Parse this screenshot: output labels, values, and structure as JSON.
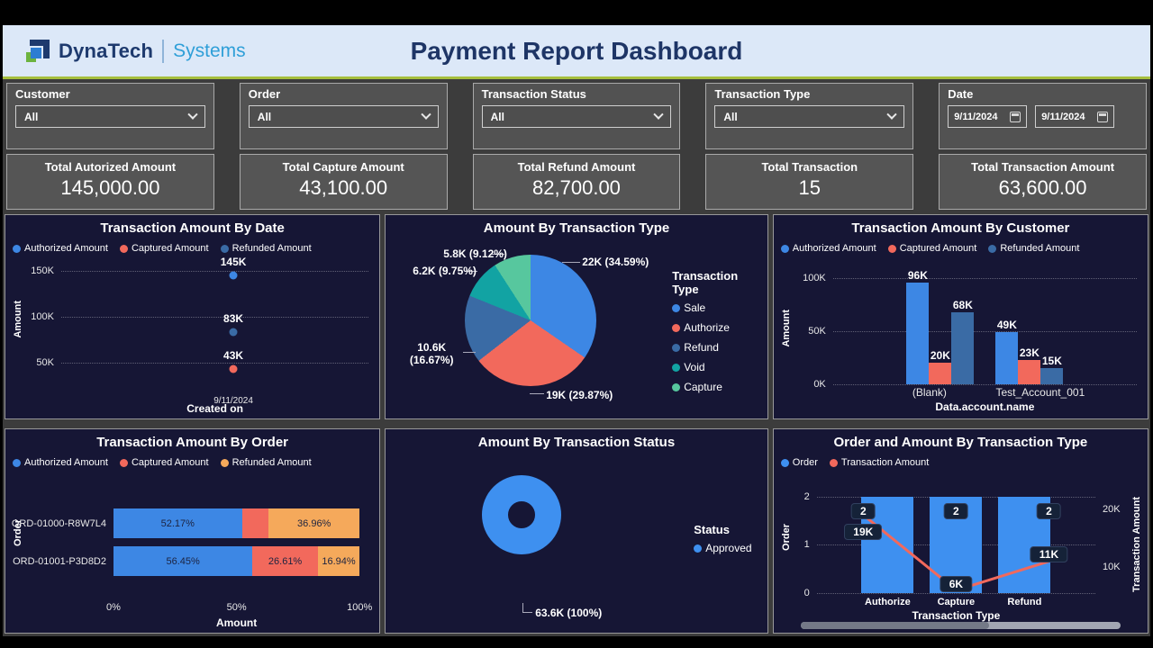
{
  "header": {
    "brand": "DynaTech",
    "brand_sub": "Systems",
    "title": "Payment Report Dashboard"
  },
  "filters": [
    {
      "label": "Customer",
      "value": "All"
    },
    {
      "label": "Order",
      "value": "All"
    },
    {
      "label": "Transaction Status",
      "value": "All"
    },
    {
      "label": "Transaction Type",
      "value": "All"
    },
    {
      "label": "Date",
      "from": "9/11/2024",
      "to": "9/11/2024"
    }
  ],
  "kpis": [
    {
      "label": "Total Autorized Amount",
      "value": "145,000.00"
    },
    {
      "label": "Total Capture Amount",
      "value": "43,100.00"
    },
    {
      "label": "Total Refund Amount",
      "value": "82,700.00"
    },
    {
      "label": "Total Transaction",
      "value": "15"
    },
    {
      "label": "Total Transaction Amount",
      "value": "63,600.00"
    }
  ],
  "colors": {
    "blue": "#3d87e4",
    "bright_blue": "#3e90f0",
    "salmon": "#f2695c",
    "steel_blue": "#3a6ba5",
    "teal": "#12a3a3",
    "mint": "#57c79e",
    "orange": "#f5a95b",
    "panel_bg": "#161635",
    "accent_line": "#a6bf3d"
  },
  "chart_data": [
    {
      "type": "scatter",
      "title": "Transaction Amount By Date",
      "legend": [
        {
          "label": "Authorized Amount",
          "color": "#3d87e4"
        },
        {
          "label": "Captured Amount",
          "color": "#f2695c"
        },
        {
          "label": "Refunded Amount",
          "color": "#3a6ba5"
        }
      ],
      "xlabel": "Created on",
      "ylabel": "Amount",
      "x": [
        "9/11/2024"
      ],
      "yticks": [
        {
          "label": "150K",
          "value": 150000
        },
        {
          "label": "100K",
          "value": 100000
        },
        {
          "label": "50K",
          "value": 50000
        }
      ],
      "points": [
        {
          "series": "Authorized Amount",
          "x": "9/11/2024",
          "value": 145000,
          "label": "145K",
          "color": "#3d87e4"
        },
        {
          "series": "Refunded Amount",
          "x": "9/11/2024",
          "value": 83000,
          "label": "83K",
          "color": "#3a6ba5"
        },
        {
          "series": "Captured Amount",
          "x": "9/11/2024",
          "value": 43000,
          "label": "43K",
          "color": "#f2695c"
        }
      ]
    },
    {
      "type": "pie",
      "title": "Amount By Transaction Type",
      "legend_title": "Transaction Type",
      "slices": [
        {
          "label": "Sale",
          "value": 22000,
          "pct": 34.59,
          "display": "22K (34.59%)",
          "color": "#3d87e4"
        },
        {
          "label": "Authorize",
          "value": 19000,
          "pct": 29.87,
          "display": "19K (29.87%)",
          "color": "#f2695c"
        },
        {
          "label": "Refund",
          "value": 10600,
          "pct": 16.67,
          "display": "10.6K (16.67%)",
          "color": "#3a6ba5"
        },
        {
          "label": "Void",
          "value": 6200,
          "pct": 9.75,
          "display": "6.2K (9.75%)",
          "color": "#12a3a3"
        },
        {
          "label": "Capture",
          "value": 5800,
          "pct": 9.12,
          "display": "5.8K (9.12%)",
          "color": "#57c79e"
        }
      ]
    },
    {
      "type": "bar",
      "title": "Transaction Amount By Customer",
      "xlabel": "Data.account.name",
      "ylabel": "Amount",
      "categories": [
        "(Blank)",
        "Test_Account_001"
      ],
      "yticks": [
        {
          "label": "100K",
          "value": 100000
        },
        {
          "label": "50K",
          "value": 50000
        },
        {
          "label": "0K",
          "value": 0
        }
      ],
      "ymax": 100000,
      "series": [
        {
          "name": "Authorized Amount",
          "color": "#3d87e4",
          "values": [
            96000,
            49000
          ],
          "labels": [
            "96K",
            "49K"
          ]
        },
        {
          "name": "Captured Amount",
          "color": "#f2695c",
          "values": [
            20000,
            23000
          ],
          "labels": [
            "20K",
            "23K"
          ]
        },
        {
          "name": "Refunded Amount",
          "color": "#3a6ba5",
          "values": [
            68000,
            15000
          ],
          "labels": [
            "68K",
            "15K"
          ]
        }
      ]
    },
    {
      "type": "stacked_bar_h",
      "title": "Transaction Amount By Order",
      "xlabel": "Amount",
      "ylabel": "Order",
      "xticks": [
        "0%",
        "50%",
        "100%"
      ],
      "categories": [
        "ORD-01000-R8W7L4",
        "ORD-01001-P3D8D2"
      ],
      "series": [
        {
          "name": "Authorized Amount",
          "color": "#3d87e4",
          "values": [
            52.17,
            56.45
          ],
          "labels": [
            "52.17%",
            "56.45%"
          ]
        },
        {
          "name": "Captured Amount",
          "color": "#f2695c",
          "values": [
            10.87,
            26.61
          ],
          "labels": [
            "",
            "26.61%"
          ]
        },
        {
          "name": "Refunded Amount",
          "color": "#f5a95b",
          "values": [
            36.96,
            16.94
          ],
          "labels": [
            "36.96%",
            "16.94%"
          ]
        }
      ]
    },
    {
      "type": "donut",
      "title": "Amount By Transaction Status",
      "legend_title": "Status",
      "slices": [
        {
          "label": "Approved",
          "value": 63600,
          "pct": 100,
          "display": "63.6K (100%)",
          "color": "#3e90f0"
        }
      ]
    },
    {
      "type": "combo",
      "title": "Order and Amount By Transaction Type",
      "xlabel": "Transaction Type",
      "ylabel_left": "Order",
      "ylabel_right": "Transaction Amount",
      "categories": [
        "Authorize",
        "Capture",
        "Refund"
      ],
      "left_yticks": [
        {
          "label": "2",
          "value": 2
        },
        {
          "label": "1",
          "value": 1
        },
        {
          "label": "0",
          "value": 0
        }
      ],
      "right_yticks": [
        {
          "label": "20K",
          "value": 20000
        },
        {
          "label": "10K",
          "value": 10000
        }
      ],
      "bars": {
        "name": "Order",
        "color": "#3e90f0",
        "ymax": 2,
        "values": [
          2,
          2,
          2
        ],
        "labels": [
          "2",
          "2",
          "2"
        ]
      },
      "line": {
        "name": "Transaction Amount",
        "color": "#f2695c",
        "values": [
          19000,
          6000,
          11000
        ],
        "labels": [
          "19K",
          "6K",
          "11K"
        ]
      }
    }
  ]
}
